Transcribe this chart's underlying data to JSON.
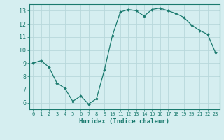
{
  "xlabel": "Humidex (Indice chaleur)",
  "ylabel": "",
  "x_values": [
    0,
    1,
    2,
    3,
    4,
    5,
    6,
    7,
    8,
    9,
    10,
    11,
    12,
    13,
    14,
    15,
    16,
    17,
    18,
    19,
    20,
    21,
    22,
    23
  ],
  "y_values": [
    9.0,
    9.2,
    8.7,
    7.5,
    7.1,
    6.1,
    6.5,
    5.9,
    6.3,
    8.5,
    11.1,
    12.9,
    13.1,
    13.0,
    12.6,
    13.1,
    13.2,
    13.0,
    12.8,
    12.5,
    11.9,
    11.5,
    11.2,
    9.8
  ],
  "line_color": "#1a7a6e",
  "marker": "D",
  "marker_size": 1.8,
  "bg_color": "#d5eef0",
  "grid_color": "#b8d8db",
  "axis_color": "#1a7a6e",
  "tick_color": "#1a7a6e",
  "ylim": [
    5.5,
    13.5
  ],
  "yticks": [
    6,
    7,
    8,
    9,
    10,
    11,
    12,
    13
  ],
  "xlim": [
    -0.5,
    23.5
  ],
  "xticks": [
    0,
    1,
    2,
    3,
    4,
    5,
    6,
    7,
    8,
    9,
    10,
    11,
    12,
    13,
    14,
    15,
    16,
    17,
    18,
    19,
    20,
    21,
    22,
    23
  ],
  "xlabel_fontsize": 6.5,
  "xlabel_fontweight": "bold",
  "xtick_fontsize": 5.0,
  "ytick_fontsize": 6.0
}
